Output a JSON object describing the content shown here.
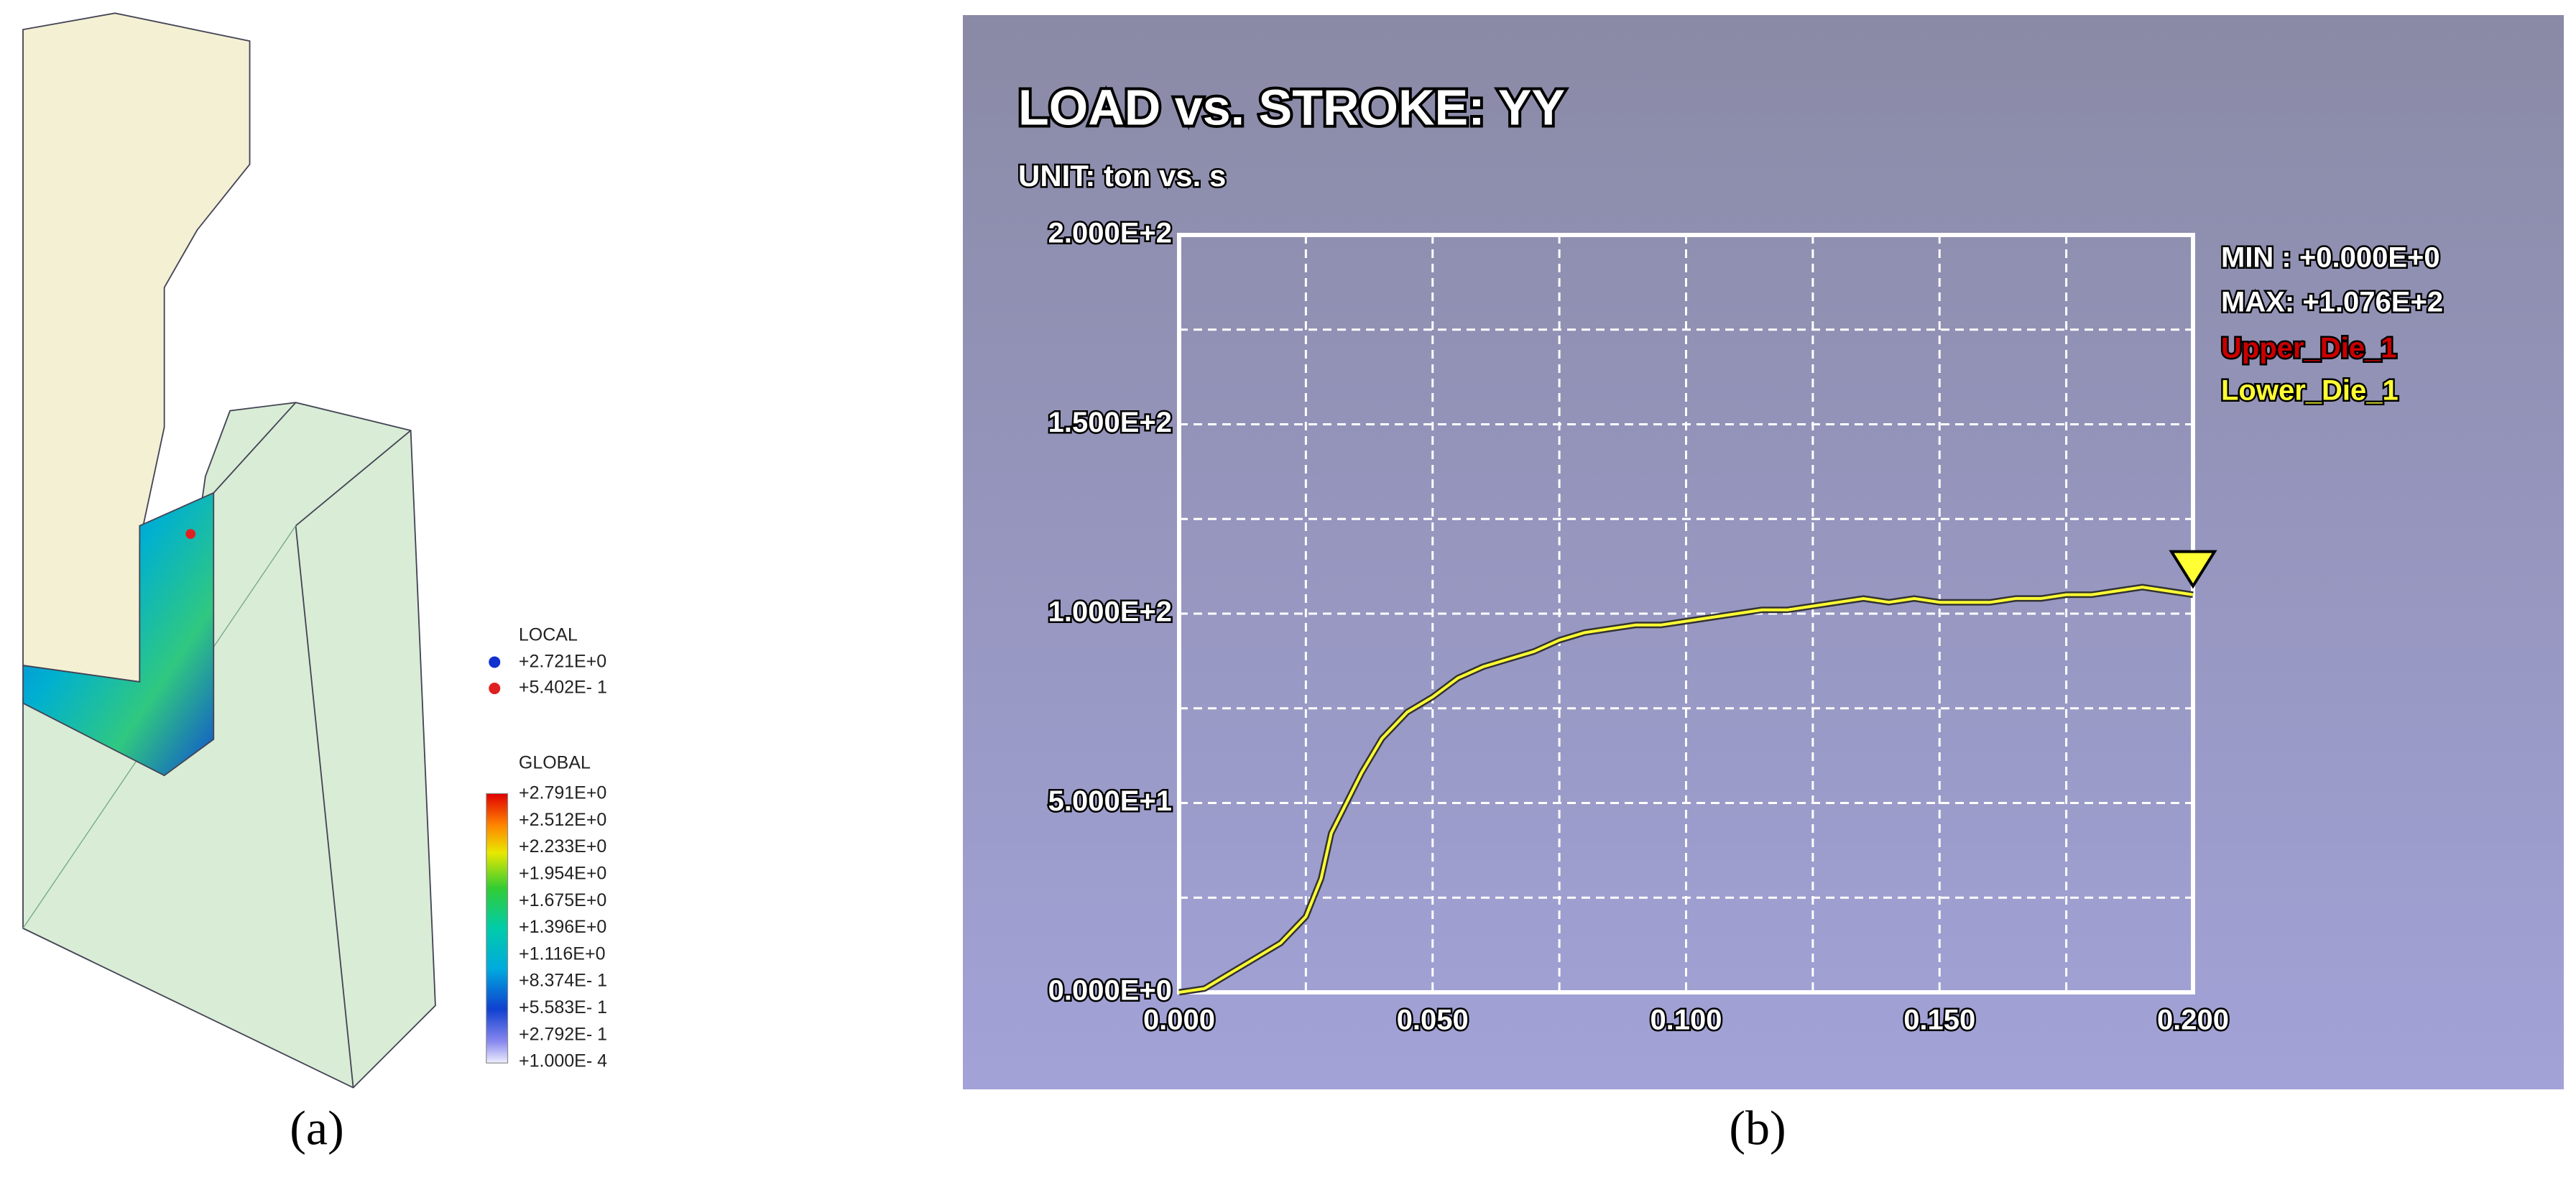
{
  "panel_a": {
    "local_title": "LOCAL",
    "local_values": [
      "+2.721E+0",
      "+5.402E- 1"
    ],
    "global_title": "GLOBAL",
    "global_values": [
      "+2.791E+0",
      "+2.512E+0",
      "+2.233E+0",
      "+1.954E+0",
      "+1.675E+0",
      "+1.396E+0",
      "+1.116E+0",
      "+8.374E- 1",
      "+5.583E- 1",
      "+2.792E- 1",
      "+1.000E- 4"
    ]
  },
  "captions": [
    "(a)",
    "(b)"
  ],
  "chart_data": {
    "type": "line",
    "title": "LOAD vs. STROKE: YY",
    "subtitle": "UNIT: ton vs. s",
    "annotations": [
      "MIN : +0.000E+0",
      "MAX: +1.076E+2"
    ],
    "x": [
      0,
      0.005,
      0.01,
      0.015,
      0.02,
      0.025,
      0.028,
      0.03,
      0.033,
      0.036,
      0.04,
      0.045,
      0.05,
      0.055,
      0.06,
      0.065,
      0.07,
      0.075,
      0.08,
      0.085,
      0.09,
      0.095,
      0.1,
      0.105,
      0.11,
      0.115,
      0.12,
      0.125,
      0.13,
      0.135,
      0.14,
      0.145,
      0.15,
      0.155,
      0.16,
      0.165,
      0.17,
      0.175,
      0.18,
      0.185,
      0.19,
      0.195,
      0.2
    ],
    "series": [
      {
        "name": "Upper_Die_1",
        "color": "#cc0000"
      },
      {
        "name": "Lower_Die_1",
        "color": "#ffff33",
        "values": [
          0,
          1,
          5,
          9,
          13,
          20,
          30,
          42,
          50,
          58,
          67,
          74,
          78,
          83,
          86,
          88,
          90,
          93,
          95,
          96,
          97,
          97,
          98,
          99,
          100,
          101,
          101,
          102,
          103,
          104,
          103,
          104,
          103,
          103,
          103,
          104,
          104,
          105,
          105,
          106,
          107,
          106,
          105
        ]
      }
    ],
    "xlim": [
      0,
      0.2
    ],
    "xticks": [
      {
        "value": 0,
        "label": "0.000"
      },
      {
        "value": 0.05,
        "label": "0.050"
      },
      {
        "value": 0.1,
        "label": "0.100"
      },
      {
        "value": 0.15,
        "label": "0.150"
      },
      {
        "value": 0.2,
        "label": "0.200"
      }
    ],
    "xminor": [
      0.025,
      0.075,
      0.125,
      0.175
    ],
    "ylim": [
      0,
      200
    ],
    "yticks": [
      {
        "value": 0,
        "label": "0.000E+0"
      },
      {
        "value": 50,
        "label": "5.000E+1"
      },
      {
        "value": 100,
        "label": "1.000E+2"
      },
      {
        "value": 150,
        "label": "1.500E+2"
      },
      {
        "value": 200,
        "label": "2.000E+2"
      }
    ],
    "yminor": [
      25,
      75,
      125,
      175
    ],
    "grid": true
  }
}
